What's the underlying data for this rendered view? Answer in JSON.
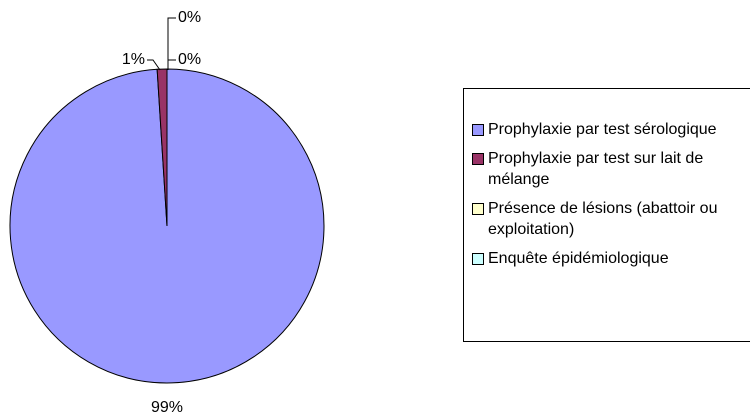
{
  "chart_data": {
    "type": "pie",
    "categories": [
      "Prophylaxie par test sérologique",
      "Prophylaxie par test sur lait de mélange",
      "Présence de lésions (abattoir ou exploitation)",
      "Enquête épidémiologique"
    ],
    "values": [
      99,
      1,
      0,
      0
    ],
    "value_labels": [
      "99%",
      "1%",
      "0%",
      "0%"
    ],
    "colors": [
      "#9999ff",
      "#993366",
      "#ffffcc",
      "#ccffff"
    ],
    "legend": "right"
  }
}
